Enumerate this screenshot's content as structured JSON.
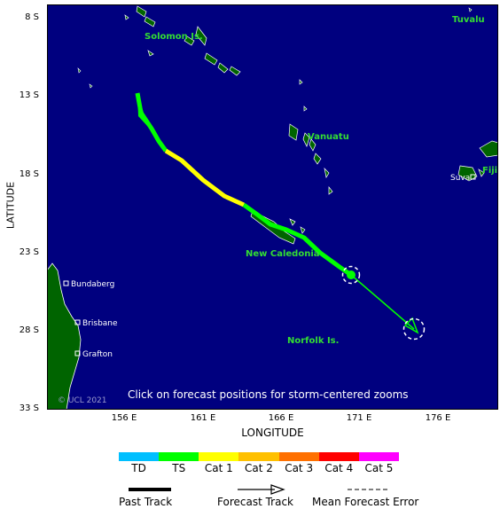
{
  "map": {
    "ocean_color": "#00007f",
    "land_color": "#006400",
    "lat_ticks": [
      "8 S",
      "13 S",
      "18 S",
      "23 S",
      "28 S",
      "33 S"
    ],
    "lon_ticks": [
      "156 E",
      "161 E",
      "166 E",
      "171 E",
      "176 E"
    ],
    "xlabel": "LONGITUDE",
    "ylabel": "LATITUDE",
    "places": [
      {
        "name": "Tuvalu"
      },
      {
        "name": "Solomon Is."
      },
      {
        "name": "Vanuatu"
      },
      {
        "name": "Fiji"
      },
      {
        "name": "New Caledonia"
      },
      {
        "name": "Norfolk Is."
      }
    ],
    "cities": [
      {
        "name": "Suva"
      },
      {
        "name": "Bundaberg"
      },
      {
        "name": "Brisbane"
      },
      {
        "name": "Grafton"
      }
    ],
    "copyright": "© UCL 2021",
    "instruction": "Click on forecast positions for storm-centered zooms"
  },
  "legend": {
    "categories": [
      {
        "label": "TD",
        "color": "#00bfff"
      },
      {
        "label": "TS",
        "color": "#00ff00"
      },
      {
        "label": "Cat 1",
        "color": "#ffff00"
      },
      {
        "label": "Cat 2",
        "color": "#ffc000"
      },
      {
        "label": "Cat 3",
        "color": "#ff7000"
      },
      {
        "label": "Cat 4",
        "color": "#ff0000"
      },
      {
        "label": "Cat 5",
        "color": "#ff00ff"
      }
    ],
    "past_track": "Past Track",
    "forecast_track": "Forecast Track",
    "mean_error": "Mean Forecast Error"
  }
}
